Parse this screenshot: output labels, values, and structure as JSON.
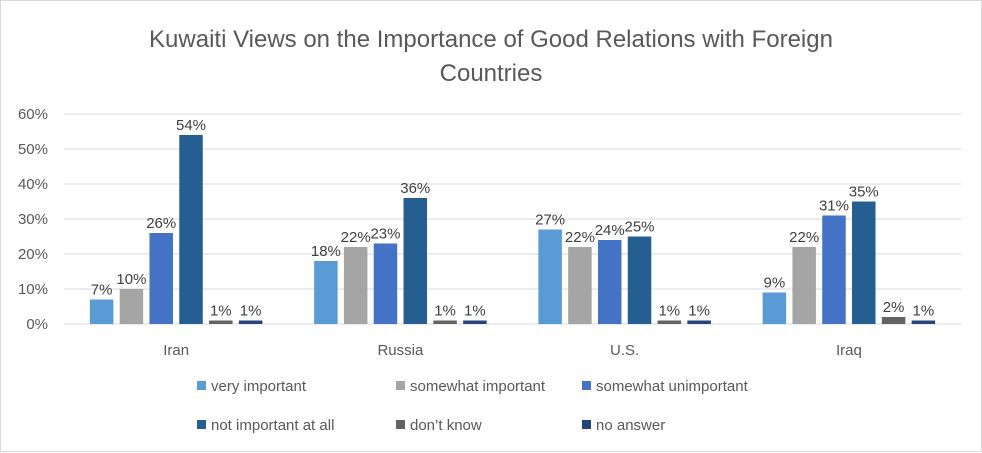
{
  "chart_data": {
    "type": "bar",
    "title_lines": [
      "Kuwaiti Views on the Importance of Good Relations with Foreign",
      "Countries"
    ],
    "categories": [
      "Iran",
      "Russia",
      "U.S.",
      "Iraq"
    ],
    "series": [
      {
        "name": "very important",
        "values": [
          7,
          18,
          27,
          9
        ],
        "color": "#5B9BD5"
      },
      {
        "name": "somewhat important",
        "values": [
          10,
          22,
          22,
          22
        ],
        "color": "#A5A5A5"
      },
      {
        "name": "somewhat unimportant",
        "values": [
          26,
          23,
          24,
          31
        ],
        "color": "#4472C4"
      },
      {
        "name": "not important at all",
        "values": [
          54,
          36,
          25,
          35
        ],
        "color": "#255E91"
      },
      {
        "name": "don’t know",
        "values": [
          1,
          1,
          1,
          2
        ],
        "color": "#636363"
      },
      {
        "name": "no answer",
        "values": [
          1,
          1,
          1,
          1
        ],
        "color": "#264478"
      }
    ],
    "yticks": [
      "0%",
      "10%",
      "20%",
      "30%",
      "40%",
      "50%",
      "60%"
    ],
    "ylim": [
      0,
      60
    ],
    "yunit": "%",
    "grid": true,
    "legend": "bottom",
    "data_labels": true
  }
}
